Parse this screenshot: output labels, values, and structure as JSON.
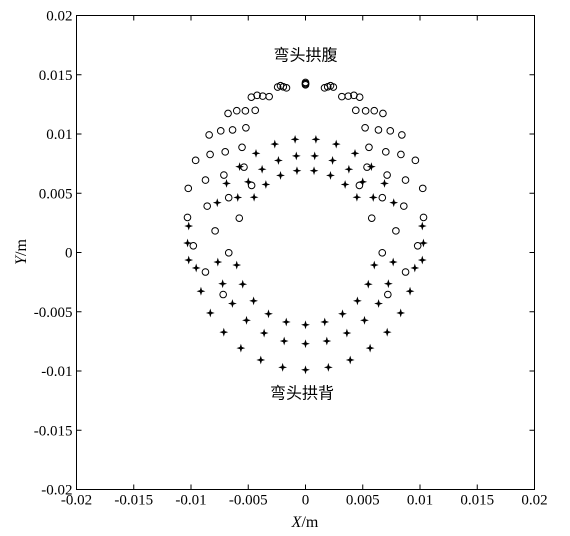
{
  "chart_data": {
    "type": "scatter",
    "xlabel": {
      "var": "X",
      "unit": "/m"
    },
    "ylabel": {
      "var": "Y",
      "unit": "/m"
    },
    "xlim": [
      -0.02,
      0.02
    ],
    "ylim": [
      -0.02,
      0.02
    ],
    "xticks": [
      "-0.02",
      "-0.015",
      "-0.01",
      "-0.005",
      "0",
      "0.005",
      "0.01",
      "0.015",
      "0.02"
    ],
    "yticks": [
      "0.02",
      "0.015",
      "0.01",
      "0.005",
      "0",
      "-0.005",
      "-0.01",
      "-0.015",
      "-0.02"
    ],
    "grid": false,
    "annotations": [
      {
        "text": "弯头拱腹",
        "x": 0.0,
        "y": 0.0162
      },
      {
        "text": "弯头拱背",
        "x": -0.0003,
        "y": -0.0123
      }
    ],
    "series": [
      {
        "marker": "circle",
        "rings": [
          {
            "radius": 0.00555,
            "center_y": 0.0086,
            "angle_from_deg": -32,
            "angle_to_deg": 212,
            "count": 15
          },
          {
            "radius": 0.00715,
            "center_y": 0.0071,
            "angle_from_deg": -36,
            "angle_to_deg": 216,
            "count": 17
          },
          {
            "radius": 0.00875,
            "center_y": 0.0056,
            "angle_from_deg": -40,
            "angle_to_deg": 220,
            "count": 19
          },
          {
            "radius": 0.01035,
            "center_y": 0.0039,
            "angle_from_deg": -46,
            "angle_to_deg": 226,
            "count": 21
          }
        ]
      },
      {
        "marker": "star",
        "rings": [
          {
            "radius": 0.00555,
            "center_y": 0.0014,
            "angle_from_deg": 36,
            "angle_to_deg": 144,
            "count": 8
          },
          {
            "radius": 0.0067,
            "center_y": 0.0015,
            "angle_from_deg": 28,
            "angle_to_deg": 152,
            "count": 10
          },
          {
            "radius": 0.0082,
            "center_y": 0.0014,
            "angle_from_deg": 20,
            "angle_to_deg": 160,
            "count": 12
          },
          {
            "radius": 0.0096,
            "center_y": -0.0003,
            "angle_from_deg": 186,
            "angle_to_deg": 354,
            "count": 15
          },
          {
            "radius": 0.0077,
            "center_y": 0.0,
            "angle_from_deg": 186,
            "angle_to_deg": 354,
            "count": 13
          },
          {
            "radius": 0.0061,
            "center_y": 0.0,
            "angle_from_deg": 190,
            "angle_to_deg": 350,
            "count": 11
          },
          {
            "radius": 0.0103,
            "center_y": 0.0008,
            "angle_from_deg": 172,
            "angle_to_deg": 188,
            "count": 3
          },
          {
            "radius": 0.0103,
            "center_y": 0.0008,
            "angle_from_deg": -8,
            "angle_to_deg": 8,
            "count": 3
          }
        ]
      }
    ]
  }
}
